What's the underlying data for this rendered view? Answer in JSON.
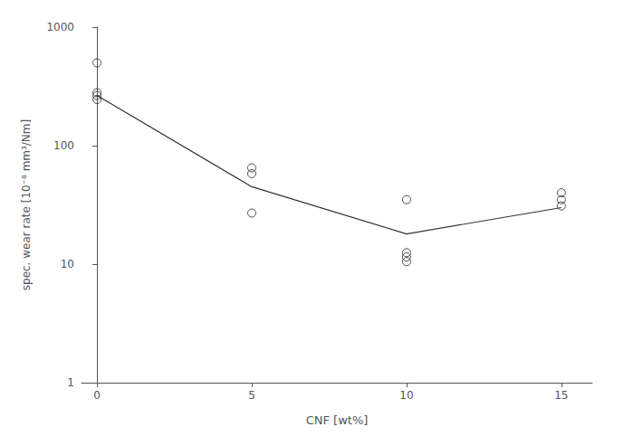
{
  "chart_data": {
    "type": "scatter",
    "xlabel": "CNF [wt%]",
    "ylabel": "spec. wear rate [10⁻⁸ mm³/Nm]",
    "log": "y",
    "grid": false,
    "xlim": [
      -0.5,
      16
    ],
    "xticks": [
      0,
      5,
      10,
      15
    ],
    "ylim": [
      1,
      1000
    ],
    "yticks": [
      1,
      10,
      100,
      1000
    ],
    "series": [
      {
        "type": "scatter",
        "marker": "circle_open",
        "color": "#222222",
        "x": [
          0,
          0,
          0,
          0
        ],
        "values": [
          500,
          280,
          265,
          245
        ]
      },
      {
        "type": "scatter",
        "marker": "circle_open",
        "color": "#222222",
        "x": [
          5,
          5,
          5
        ],
        "values": [
          65,
          58,
          27
        ]
      },
      {
        "type": "scatter",
        "marker": "circle_open",
        "color": "#222222",
        "x": [
          10,
          10,
          10,
          10
        ],
        "values": [
          35,
          12.5,
          11.5,
          10.5
        ]
      },
      {
        "type": "scatter",
        "marker": "circle_open",
        "color": "#222222",
        "x": [
          15,
          15,
          15
        ],
        "values": [
          40,
          35,
          31
        ]
      },
      {
        "type": "line",
        "color": "#333333",
        "x": [
          0,
          5,
          10,
          15
        ],
        "values": [
          265,
          45,
          18,
          30
        ]
      }
    ]
  }
}
